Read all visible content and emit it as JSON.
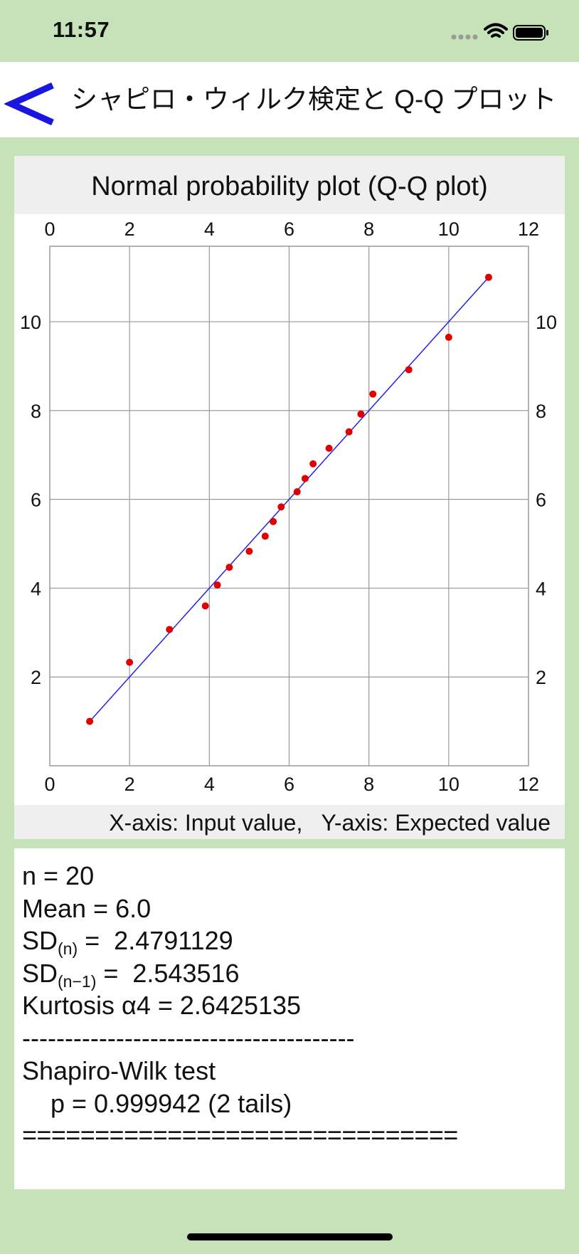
{
  "status_bar": {
    "time": "11:57",
    "icons": [
      "signal-icon",
      "wifi-icon",
      "battery-icon"
    ]
  },
  "nav": {
    "back_label": "<",
    "title": "シャピロ・ウィルク検定と Q-Q プロット"
  },
  "chart_data": {
    "type": "scatter",
    "title": "Normal probability plot (Q-Q plot)",
    "xlabel": "X-axis: Input value,   Y-axis: Expected value",
    "ylabel": "",
    "xlim": [
      0,
      12
    ],
    "ylim": [
      0,
      11.7
    ],
    "x_ticks": [
      0,
      2,
      4,
      6,
      8,
      10,
      12
    ],
    "y_ticks": [
      2,
      4,
      6,
      8,
      10
    ],
    "grid": true,
    "points": [
      {
        "x": 1.0,
        "y": 1.0
      },
      {
        "x": 2.0,
        "y": 2.33
      },
      {
        "x": 3.0,
        "y": 3.07
      },
      {
        "x": 3.9,
        "y": 3.6
      },
      {
        "x": 4.2,
        "y": 4.07
      },
      {
        "x": 4.5,
        "y": 4.47
      },
      {
        "x": 5.0,
        "y": 4.83
      },
      {
        "x": 5.4,
        "y": 5.17
      },
      {
        "x": 5.6,
        "y": 5.5
      },
      {
        "x": 5.8,
        "y": 5.83
      },
      {
        "x": 6.2,
        "y": 6.17
      },
      {
        "x": 6.4,
        "y": 6.47
      },
      {
        "x": 6.6,
        "y": 6.8
      },
      {
        "x": 7.0,
        "y": 7.15
      },
      {
        "x": 7.5,
        "y": 7.52
      },
      {
        "x": 7.8,
        "y": 7.92
      },
      {
        "x": 8.1,
        "y": 8.37
      },
      {
        "x": 9.0,
        "y": 8.92
      },
      {
        "x": 10.0,
        "y": 9.65
      },
      {
        "x": 11.0,
        "y": 11.0
      }
    ],
    "reference_line": {
      "x": [
        1.0,
        11.0
      ],
      "y": [
        1.0,
        11.0
      ]
    },
    "colors": {
      "points": "#e00000",
      "line": "#2323e6",
      "grid": "#9a9a9a"
    }
  },
  "stats": {
    "n": "n = 20",
    "mean": "Mean = 6.0",
    "sd_n_prefix": "SD",
    "sd_n_sub": "(n)",
    "sd_n_value": " =  2.4791129",
    "sd_n1_prefix": "SD",
    "sd_n1_sub": "(n−1)",
    "sd_n1_value": " =  2.543516",
    "kurtosis": "Kurtosis α4 = 2.6425135",
    "divider": "---------------------------------------",
    "test_name": "Shapiro-Wilk test",
    "p_value": "    p = 0.999942 (2 tails)",
    "end_rule": "=============================="
  },
  "colors": {
    "background": "#c6e2b9",
    "back_arrow": "#1a16e0"
  }
}
